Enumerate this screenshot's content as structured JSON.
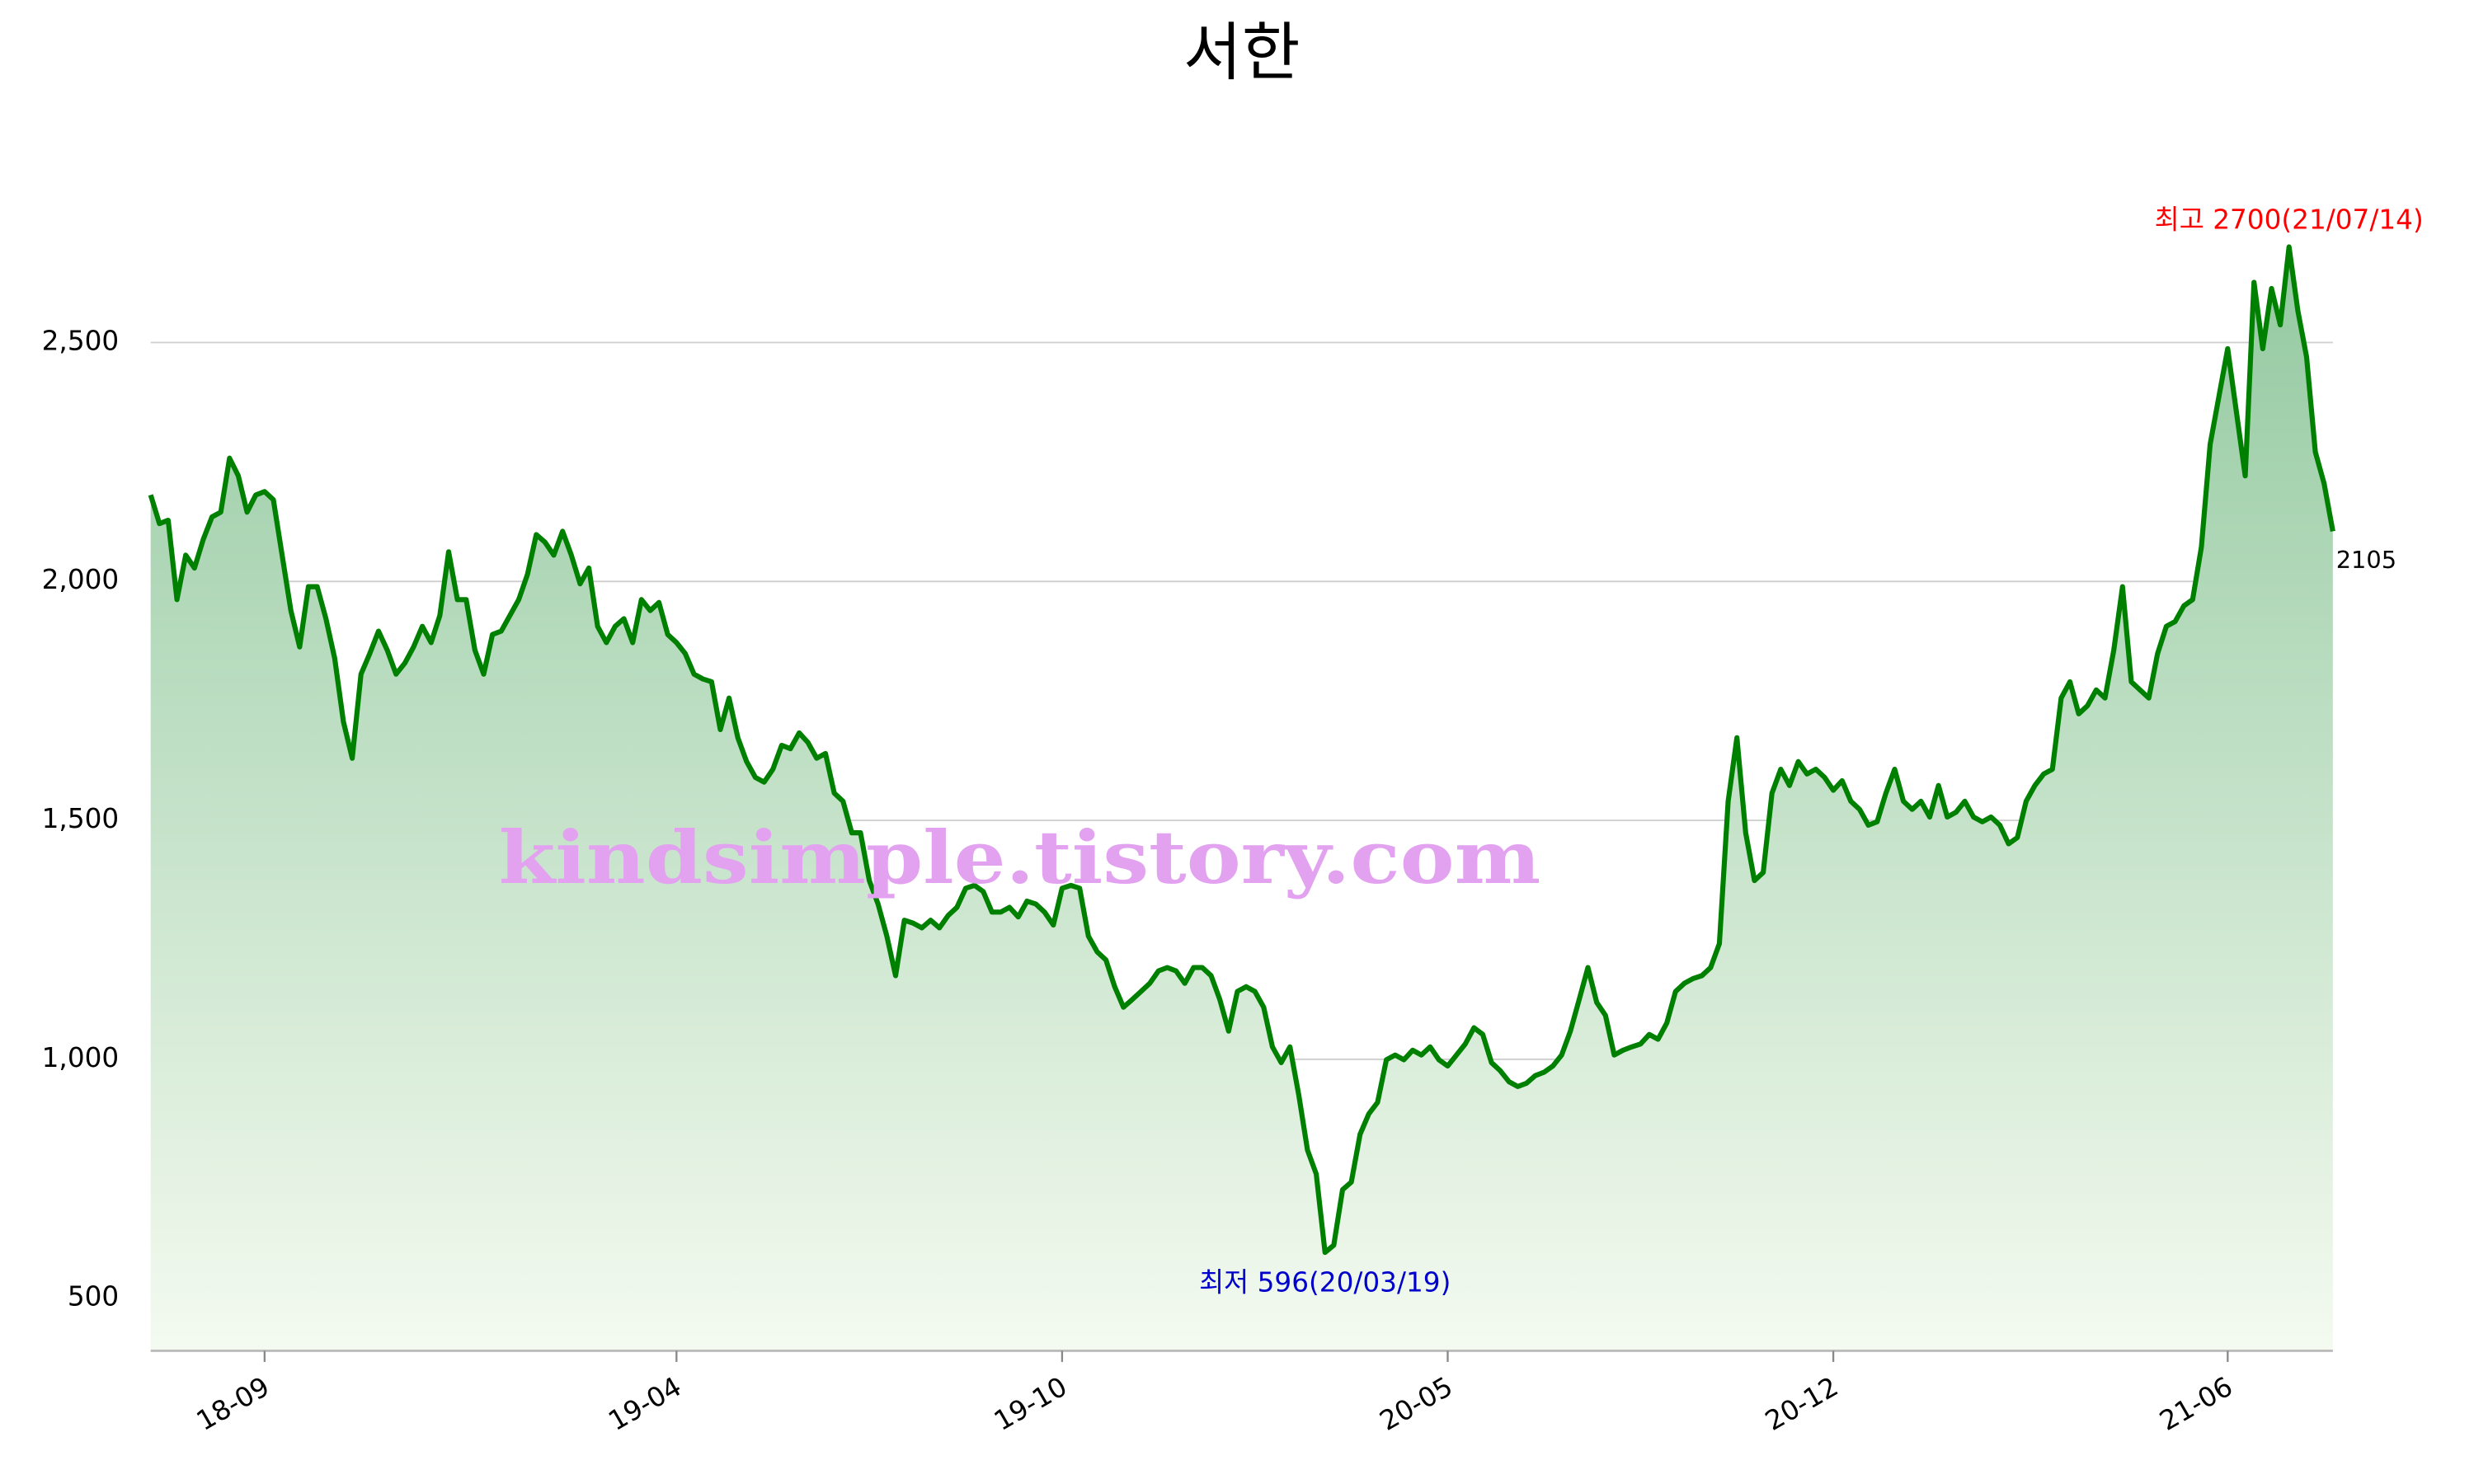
{
  "chart_data": {
    "type": "line",
    "title": "서한",
    "watermark": "kindsimple.tistory.com",
    "categories": [
      null,
      null,
      null,
      null,
      null,
      null,
      null,
      null,
      null,
      null,
      null,
      null,
      null,
      "18-09",
      null,
      null,
      null,
      null,
      null,
      null,
      null,
      null,
      null,
      null,
      null,
      null,
      null,
      null,
      null,
      null,
      null,
      null,
      null,
      null,
      null,
      null,
      null,
      null,
      null,
      null,
      null,
      null,
      null,
      null,
      null,
      null,
      null,
      null,
      null,
      null,
      null,
      null,
      null,
      null,
      null,
      null,
      null,
      null,
      null,
      null,
      "19-04",
      null,
      null,
      null,
      null,
      null,
      null,
      null,
      null,
      null,
      null,
      null,
      null,
      null,
      null,
      null,
      null,
      null,
      null,
      null,
      null,
      null,
      null,
      null,
      null,
      null,
      null,
      null,
      null,
      null,
      null,
      null,
      null,
      null,
      null,
      null,
      null,
      null,
      null,
      null,
      null,
      null,
      null,
      null,
      "19-10",
      null,
      null,
      null,
      null,
      null,
      null,
      null,
      null,
      null,
      null,
      null,
      null,
      null,
      null,
      null,
      null,
      null,
      null,
      null,
      null,
      null,
      null,
      null,
      null,
      null,
      null,
      null,
      null,
      null,
      null,
      null,
      null,
      null,
      null,
      null,
      null,
      null,
      null,
      null,
      null,
      null,
      null,
      null,
      "20-05",
      null,
      null,
      null,
      null,
      null,
      null,
      null,
      null,
      null,
      null,
      null,
      null,
      null,
      null,
      null,
      null,
      null,
      null,
      null,
      null,
      null,
      null,
      null,
      null,
      null,
      null,
      null,
      null,
      null,
      null,
      null,
      null,
      null,
      null,
      null,
      null,
      null,
      null,
      null,
      null,
      null,
      null,
      null,
      "20-12",
      null,
      null,
      null,
      null,
      null,
      null,
      null,
      null,
      null,
      null,
      null,
      null,
      null,
      null,
      null,
      null,
      null,
      null,
      null,
      null,
      null,
      null,
      null,
      null,
      null,
      null,
      null,
      null,
      null,
      null,
      null,
      null,
      null,
      null,
      null,
      null,
      null,
      null,
      null,
      null,
      null,
      null,
      null,
      null,
      "21-06",
      null,
      null,
      null,
      null,
      null,
      null,
      null,
      null,
      null,
      null,
      null,
      null
    ],
    "series": [
      {
        "name": "서한",
        "color": "#008000",
        "values": [
          2181,
          2121,
          2128,
          1962,
          2055,
          2028,
          2088,
          2135,
          2145,
          2258,
          2221,
          2145,
          2181,
          2188,
          2171,
          2055,
          1939,
          1863,
          1989,
          1989,
          1922,
          1839,
          1706,
          1630,
          1806,
          1849,
          1896,
          1856,
          1806,
          1829,
          1863,
          1906,
          1872,
          1929,
          2062,
          1962,
          1962,
          1856,
          1806,
          1889,
          1896,
          1929,
          1962,
          2015,
          2098,
          2082,
          2055,
          2105,
          2055,
          1995,
          2028,
          1906,
          1872,
          1906,
          1922,
          1872,
          1962,
          1939,
          1956,
          1889,
          1872,
          1849,
          1806,
          1796,
          1790,
          1690,
          1756,
          1673,
          1623,
          1590,
          1580,
          1607,
          1657,
          1650,
          1683,
          1663,
          1630,
          1640,
          1557,
          1540,
          1474,
          1474,
          1374,
          1325,
          1258,
          1175,
          1291,
          1285,
          1275,
          1291,
          1275,
          1301,
          1318,
          1358,
          1364,
          1351,
          1308,
          1308,
          1318,
          1298,
          1331,
          1325,
          1308,
          1281,
          1358,
          1364,
          1358,
          1258,
          1225,
          1208,
          1152,
          1109,
          1125,
          1142,
          1159,
          1185,
          1192,
          1185,
          1159,
          1192,
          1192,
          1175,
          1125,
          1059,
          1142,
          1152,
          1142,
          1109,
          1026,
          993,
          1026,
          926,
          810,
          760,
          596,
          611,
          727,
          743,
          843,
          886,
          910,
          999,
          1009,
          999,
          1019,
          1009,
          1026,
          999,
          986,
          1009,
          1032,
          1066,
          1052,
          993,
          976,
          953,
          943,
          950,
          966,
          973,
          986,
          1009,
          1059,
          1125,
          1192,
          1119,
          1092,
          1009,
          1019,
          1026,
          1032,
          1052,
          1042,
          1076,
          1142,
          1159,
          1169,
          1175,
          1192,
          1242,
          1540,
          1673,
          1474,
          1374,
          1391,
          1557,
          1607,
          1573,
          1623,
          1597,
          1607,
          1590,
          1563,
          1583,
          1540,
          1523,
          1490,
          1497,
          1557,
          1607,
          1540,
          1523,
          1540,
          1507,
          1573,
          1507,
          1517,
          1540,
          1507,
          1497,
          1507,
          1490,
          1451,
          1464,
          1540,
          1573,
          1597,
          1607,
          1756,
          1790,
          1723,
          1740,
          1773,
          1756,
          1856,
          1989,
          1790,
          1773,
          1756,
          1849,
          1906,
          1916,
          1949,
          1962,
          2072,
          2287,
          2387,
          2487,
          2354,
          2221,
          2626,
          2487,
          2613,
          2537,
          2700,
          2567,
          2470,
          2271,
          2205,
          2105
        ]
      }
    ],
    "annotations": {
      "high": "최고 2700(21/07/14)",
      "low": "최저 596(20/03/19)",
      "last": "2105"
    },
    "annotation_colors": {
      "high": "#ff0000",
      "low": "#0000cc",
      "last": "#000000"
    },
    "fill_colors": [
      "#93c9a0",
      "#f4faf0"
    ],
    "ylim": [
      390,
      2800
    ],
    "yticks": [
      500,
      {
        "value": 1000,
        "label": "1,000"
      },
      {
        "value": 1500,
        "label": "1,500"
      },
      {
        "value": 2000,
        "label": "2,000"
      },
      {
        "value": 2500,
        "label": "2,500"
      }
    ],
    "grid": true
  }
}
